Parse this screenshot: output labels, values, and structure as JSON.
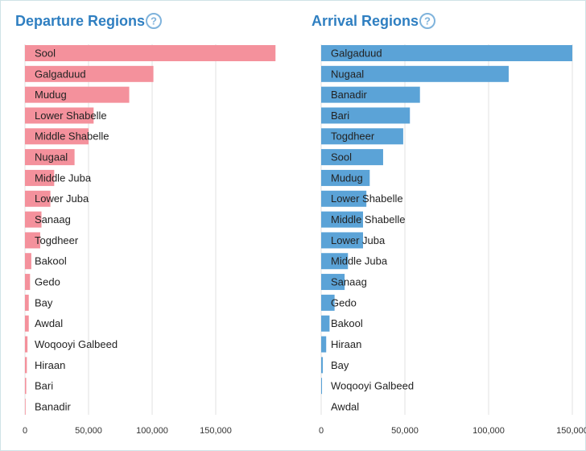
{
  "chart_data": [
    {
      "type": "bar",
      "orientation": "horizontal",
      "title": "Departure Regions",
      "color": "#f4919c",
      "categories": [
        "Sool",
        "Galgaduud",
        "Mudug",
        "Lower Shabelle",
        "Middle Shabelle",
        "Nugaal",
        "Middle Juba",
        "Lower Juba",
        "Sanaag",
        "Togdheer",
        "Bakool",
        "Gedo",
        "Bay",
        "Awdal",
        "Woqooyi Galbeed",
        "Hiraan",
        "Bari",
        "Banadir"
      ],
      "values": [
        197000,
        101000,
        82000,
        54000,
        50000,
        39000,
        23000,
        20000,
        13000,
        12000,
        5000,
        4000,
        3000,
        3000,
        2000,
        1500,
        1000,
        500
      ],
      "xlim": [
        0,
        200000
      ],
      "xticks": [
        0,
        {
          "value": 50000,
          "label": "50,000"
        },
        {
          "value": 100000,
          "label": "100,000"
        },
        {
          "value": 150000,
          "label": "150,000"
        }
      ],
      "grid": true
    },
    {
      "type": "bar",
      "orientation": "horizontal",
      "title": "Arrival Regions",
      "color": "#5ba3d7",
      "categories": [
        "Galgaduud",
        "Nugaal",
        "Banadir",
        "Bari",
        "Togdheer",
        "Sool",
        "Mudug",
        "Lower Shabelle",
        "Middle Shabelle",
        "Lower Juba",
        "Middle Juba",
        "Sanaag",
        "Gedo",
        "Bakool",
        "Hiraan",
        "Bay",
        "Woqooyi Galbeed",
        "Awdal"
      ],
      "values": [
        150000,
        112000,
        59000,
        53000,
        49000,
        37000,
        29000,
        27000,
        25000,
        25000,
        16000,
        14000,
        8000,
        5000,
        3000,
        1000,
        500,
        0
      ],
      "xlim": [
        0,
        150000
      ],
      "xticks": [
        0,
        {
          "value": 50000,
          "label": "50,000"
        },
        {
          "value": 100000,
          "label": "100,000"
        },
        {
          "value": 150000,
          "label": "150,000"
        }
      ],
      "grid": true
    }
  ]
}
